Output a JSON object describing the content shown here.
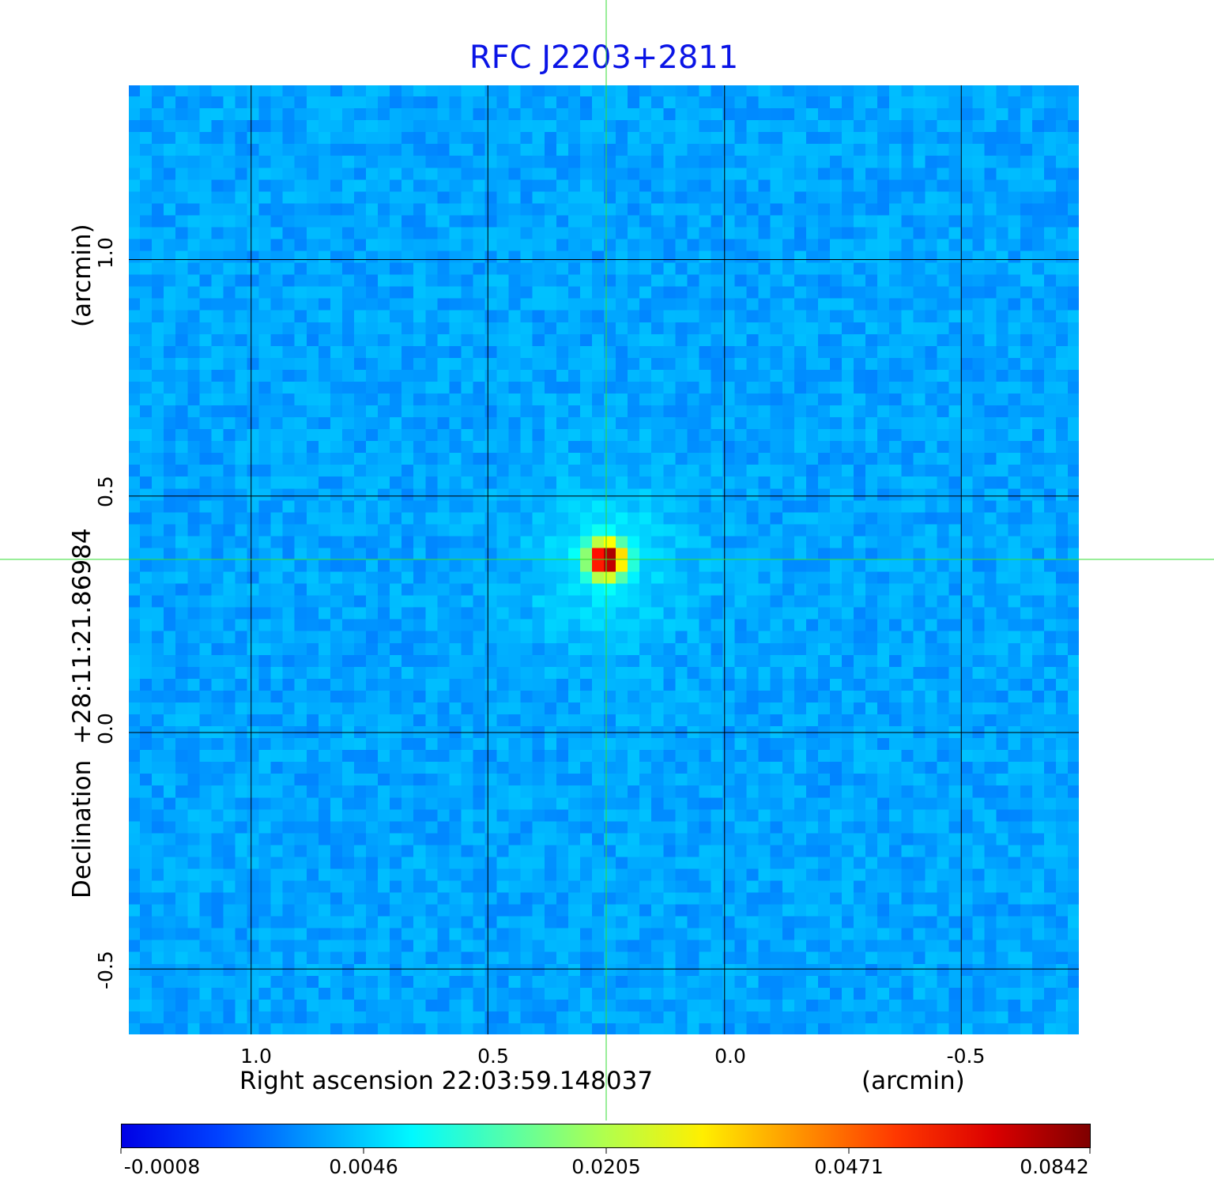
{
  "chart_data": {
    "type": "heatmap",
    "title": "RFC J2203+2811",
    "xlabel": "Right ascension  22:03:59.148037",
    "xunit": "(arcmin)",
    "ylabel": "Declination  +28:11:21.86984",
    "yunit": "(arcmin)",
    "x_ticks": [
      "1.0",
      "0.5",
      "0.0",
      "-0.5"
    ],
    "x_tick_values": [
      1.0,
      0.5,
      0.0,
      -0.5
    ],
    "y_ticks": [
      "1.0",
      "0.5",
      "0.0",
      "-0.5"
    ],
    "y_tick_values": [
      1.0,
      0.5,
      0.0,
      -0.5
    ],
    "xlim": [
      1.26,
      -0.75
    ],
    "ylim": [
      -0.64,
      1.37
    ],
    "grid": true,
    "crosshair": {
      "x": 0.25,
      "y": 0.366
    },
    "peak": {
      "x": 0.25,
      "y": 0.366,
      "value": 0.0842
    },
    "colormap": "jet",
    "colorbar": {
      "ticks": [
        "-0.0008",
        "0.0046",
        "0.0205",
        "0.0471",
        "0.0842"
      ],
      "range": [
        -0.0008,
        0.0842
      ],
      "placement": "bottom"
    },
    "colors": {
      "title": "#0a14e6",
      "crosshair": "#33dd33",
      "grid": "#000000",
      "background": "#1030f0"
    }
  }
}
